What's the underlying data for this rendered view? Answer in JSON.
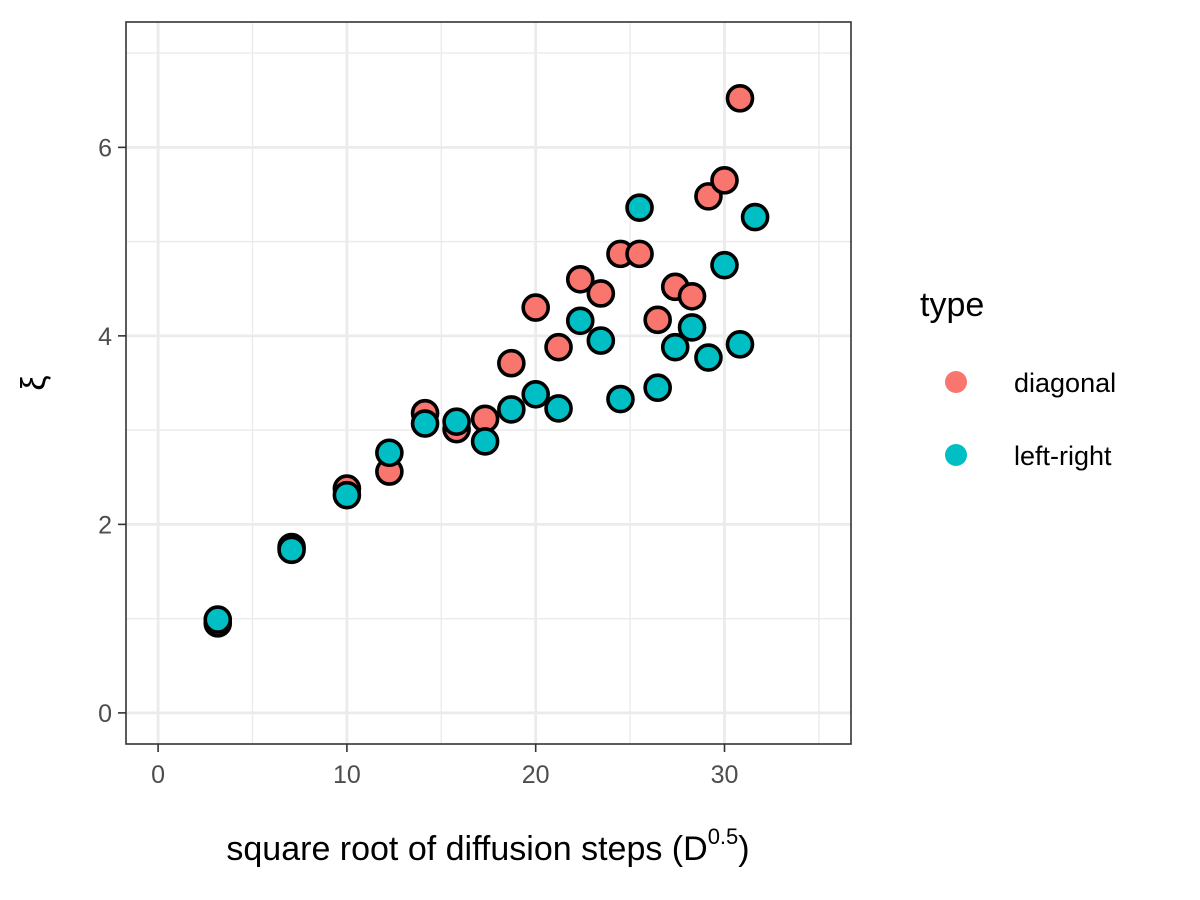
{
  "chart_data": {
    "type": "scatter",
    "title": "",
    "xlabel_main": "square root of diffusion steps (D",
    "xlabel_sup": "0.5",
    "xlabel_close": ")",
    "ylabel": "ξ",
    "xlim": [
      -1.7,
      36.7
    ],
    "ylim": [
      -0.33,
      7.33
    ],
    "xticks_major": [
      0,
      10,
      20,
      30
    ],
    "xticks_minor": [
      5,
      15,
      25,
      35
    ],
    "yticks_major": [
      0,
      2,
      4,
      6
    ],
    "yticks_minor": [
      1,
      3,
      5,
      7
    ],
    "grid": true,
    "legend": {
      "title": "type",
      "position": "right"
    },
    "series": [
      {
        "name": "diagonal",
        "color": "#F8766D",
        "points": [
          [
            3.16,
            0.95
          ],
          [
            7.07,
            1.76
          ],
          [
            10.0,
            2.38
          ],
          [
            12.25,
            2.56
          ],
          [
            14.14,
            3.18
          ],
          [
            15.81,
            3.01
          ],
          [
            17.32,
            3.12
          ],
          [
            18.71,
            3.71
          ],
          [
            20.0,
            4.3
          ],
          [
            21.21,
            3.88
          ],
          [
            22.36,
            4.6
          ],
          [
            23.45,
            4.45
          ],
          [
            24.49,
            4.87
          ],
          [
            25.5,
            4.87
          ],
          [
            26.46,
            4.17
          ],
          [
            27.39,
            4.52
          ],
          [
            28.28,
            4.42
          ],
          [
            29.15,
            5.48
          ],
          [
            30.0,
            5.65
          ],
          [
            30.82,
            6.52
          ]
        ]
      },
      {
        "name": "left-right",
        "color": "#00BFC4",
        "points": [
          [
            3.16,
            0.99
          ],
          [
            7.07,
            1.73
          ],
          [
            10.0,
            2.31
          ],
          [
            12.25,
            2.76
          ],
          [
            14.14,
            3.07
          ],
          [
            15.81,
            3.09
          ],
          [
            17.32,
            2.88
          ],
          [
            18.71,
            3.22
          ],
          [
            20.0,
            3.38
          ],
          [
            21.21,
            3.23
          ],
          [
            22.36,
            4.16
          ],
          [
            23.45,
            3.95
          ],
          [
            24.49,
            3.33
          ],
          [
            25.5,
            5.36
          ],
          [
            26.46,
            3.45
          ],
          [
            27.39,
            3.88
          ],
          [
            28.28,
            4.09
          ],
          [
            29.15,
            3.77
          ],
          [
            30.0,
            4.75
          ],
          [
            30.82,
            3.91
          ],
          [
            31.62,
            5.26
          ]
        ]
      }
    ]
  }
}
